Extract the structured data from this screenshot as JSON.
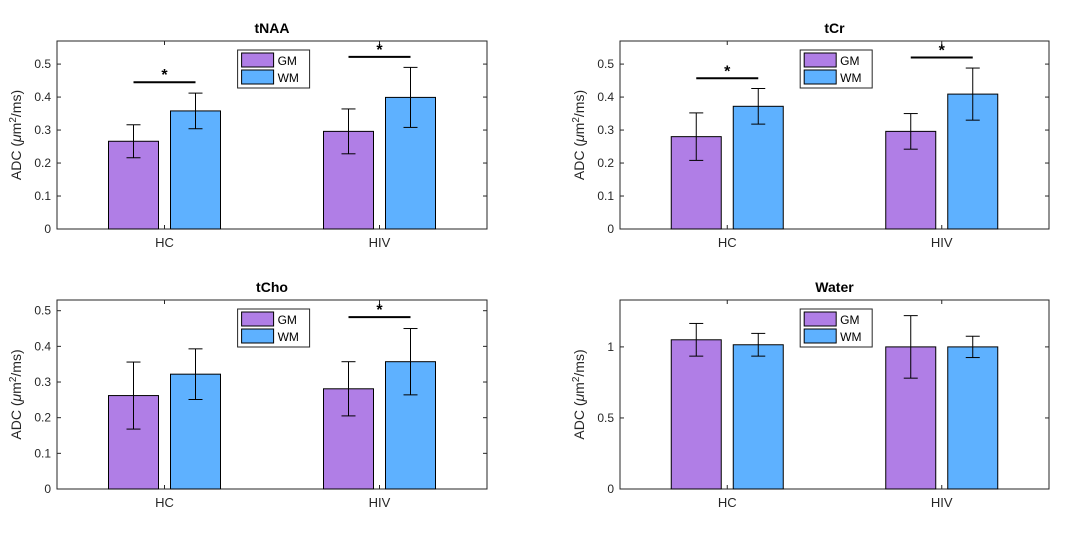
{
  "figure": {
    "bar_colors": [
      "#b07ee6",
      "#5eb1ff"
    ]
  },
  "chart_data": [
    {
      "type": "bar",
      "title": "tNAA",
      "categories": [
        "HC",
        "HIV"
      ],
      "series": [
        {
          "name": "GM",
          "values": [
            0.266,
            0.296
          ],
          "errors": [
            0.05,
            0.068
          ]
        },
        {
          "name": "WM",
          "values": [
            0.358,
            0.399
          ],
          "errors": [
            0.054,
            0.091
          ]
        }
      ],
      "ylabel": {
        "prefix": "ADC (",
        "mu": "μ",
        "unit": "m",
        "sup": "2",
        "suffix": "/ms)"
      },
      "ylim": [
        0,
        0.57
      ],
      "yticks": [
        "0",
        "0.1",
        "0.2",
        "0.3",
        "0.4",
        "0.5"
      ],
      "yticks_values": [
        0,
        0.1,
        0.2,
        0.3,
        0.4,
        0.5
      ],
      "significance": [
        {
          "category": "HC",
          "label": "*",
          "y": 0.445
        },
        {
          "category": "HIV",
          "label": "*",
          "y": 0.522
        }
      ]
    },
    {
      "type": "bar",
      "title": "tCr",
      "categories": [
        "HC",
        "HIV"
      ],
      "series": [
        {
          "name": "GM",
          "values": [
            0.28,
            0.296
          ],
          "errors": [
            0.072,
            0.054
          ]
        },
        {
          "name": "WM",
          "values": [
            0.372,
            0.409
          ],
          "errors": [
            0.054,
            0.079
          ]
        }
      ],
      "ylabel": {
        "prefix": "ADC (",
        "mu": "μ",
        "unit": "m",
        "sup": "2",
        "suffix": "/ms)"
      },
      "ylim": [
        0,
        0.57
      ],
      "yticks": [
        "0",
        "0.1",
        "0.2",
        "0.3",
        "0.4",
        "0.5"
      ],
      "yticks_values": [
        0,
        0.1,
        0.2,
        0.3,
        0.4,
        0.5
      ],
      "significance": [
        {
          "category": "HC",
          "label": "*",
          "y": 0.457
        },
        {
          "category": "HIV",
          "label": "*",
          "y": 0.52
        }
      ]
    },
    {
      "type": "bar",
      "title": "tCho",
      "categories": [
        "HC",
        "HIV"
      ],
      "series": [
        {
          "name": "GM",
          "values": [
            0.262,
            0.281
          ],
          "errors": [
            0.094,
            0.076
          ]
        },
        {
          "name": "WM",
          "values": [
            0.322,
            0.357
          ],
          "errors": [
            0.071,
            0.093
          ]
        }
      ],
      "ylabel": {
        "prefix": "ADC (",
        "mu": "μ",
        "unit": "m",
        "sup": "2",
        "suffix": "/ms)"
      },
      "ylim": [
        0,
        0.53
      ],
      "yticks": [
        "0",
        "0.1",
        "0.2",
        "0.3",
        "0.4",
        "0.5"
      ],
      "yticks_values": [
        0,
        0.1,
        0.2,
        0.3,
        0.4,
        0.5
      ],
      "significance": [
        {
          "category": "HIV",
          "label": "*",
          "y": 0.482
        }
      ]
    },
    {
      "type": "bar",
      "title": "Water",
      "categories": [
        "HC",
        "HIV"
      ],
      "series": [
        {
          "name": "GM",
          "values": [
            1.05,
            1.0
          ],
          "errors": [
            0.115,
            0.22
          ]
        },
        {
          "name": "WM",
          "values": [
            1.015,
            1.0
          ],
          "errors": [
            0.08,
            0.075
          ]
        }
      ],
      "ylabel": {
        "prefix": "ADC (",
        "mu": "μ",
        "unit": "m",
        "sup": "2",
        "suffix": "/ms)"
      },
      "ylim": [
        0,
        1.33
      ],
      "yticks": [
        "0",
        "0.5",
        "1"
      ],
      "yticks_values": [
        0,
        0.5,
        1
      ],
      "significance": []
    }
  ]
}
